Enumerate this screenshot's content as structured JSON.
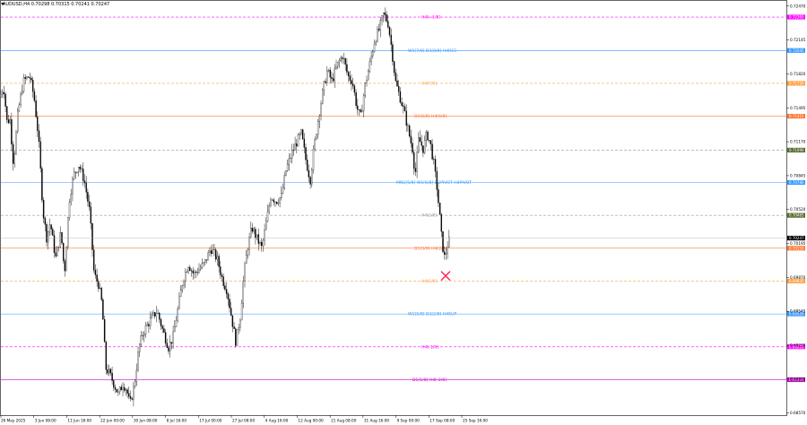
{
  "header": {
    "symbol_line": "AUDUSD,H4  0.70298 0.70315 0.70241 0.70247"
  },
  "chart_data": {
    "type": "candlestick",
    "symbol": "AUDUSD",
    "timeframe": "H4",
    "ylim": [
      0.6855,
      0.7252
    ],
    "last_price": "0.70247",
    "y_ticks": [
      "0.72470",
      "0.72145",
      "0.71820",
      "0.71495",
      "0.71170",
      "0.70845",
      "0.70520",
      "0.70195",
      "0.69870",
      "0.69545",
      "0.69220",
      "0.68895",
      "0.68570"
    ],
    "x_ticks": [
      "26 May 2025",
      "3 Jun 08:00",
      "11 Jun 16:00",
      "22 Jun 00:00",
      "30 Jun 08:00",
      "8 Jul 16:00",
      "17 Jul 00:00",
      "27 Jul 08:00",
      "4 Aug 16:00",
      "12 Aug 00:00",
      "21 Aug 08:00",
      "31 Aug 16:00",
      "9 Sep 00:00",
      "17 Sep 08:00",
      "25 Sep 16:00"
    ],
    "price_path": [
      [
        0,
        0.716
      ],
      [
        4,
        0.717
      ],
      [
        8,
        0.7135
      ],
      [
        11,
        0.714
      ],
      [
        15,
        0.7095
      ],
      [
        20,
        0.7145
      ],
      [
        26,
        0.7175
      ],
      [
        33,
        0.718
      ],
      [
        38,
        0.716
      ],
      [
        43,
        0.712
      ],
      [
        48,
        0.705
      ],
      [
        52,
        0.7025
      ],
      [
        56,
        0.704
      ],
      [
        62,
        0.7005
      ],
      [
        68,
        0.703
      ],
      [
        72,
        0.699
      ],
      [
        77,
        0.706
      ],
      [
        82,
        0.7085
      ],
      [
        88,
        0.7095
      ],
      [
        94,
        0.708
      ],
      [
        100,
        0.705
      ],
      [
        105,
        0.699
      ],
      [
        110,
        0.698
      ],
      [
        114,
        0.696
      ],
      [
        118,
        0.69
      ],
      [
        122,
        0.6895
      ],
      [
        127,
        0.6885
      ],
      [
        132,
        0.6875
      ],
      [
        137,
        0.6885
      ],
      [
        141,
        0.688
      ],
      [
        145,
        0.6865
      ],
      [
        150,
        0.6885
      ],
      [
        155,
        0.692
      ],
      [
        160,
        0.6935
      ],
      [
        167,
        0.6945
      ],
      [
        175,
        0.6955
      ],
      [
        182,
        0.6935
      ],
      [
        188,
        0.692
      ],
      [
        193,
        0.693
      ],
      [
        198,
        0.6955
      ],
      [
        204,
        0.6985
      ],
      [
        210,
        0.7
      ],
      [
        216,
        0.699
      ],
      [
        222,
        0.6995
      ],
      [
        228,
        0.7
      ],
      [
        235,
        0.7015
      ],
      [
        242,
        0.7005
      ],
      [
        248,
        0.6985
      ],
      [
        253,
        0.6975
      ],
      [
        258,
        0.695
      ],
      [
        263,
        0.6925
      ],
      [
        268,
        0.695
      ],
      [
        272,
        0.699
      ],
      [
        276,
        0.7015
      ],
      [
        281,
        0.7035
      ],
      [
        286,
        0.7025
      ],
      [
        292,
        0.7015
      ],
      [
        297,
        0.704
      ],
      [
        302,
        0.7065
      ],
      [
        308,
        0.706
      ],
      [
        314,
        0.7065
      ],
      [
        319,
        0.709
      ],
      [
        325,
        0.7105
      ],
      [
        330,
        0.7115
      ],
      [
        336,
        0.7125
      ],
      [
        341,
        0.71
      ],
      [
        346,
        0.708
      ],
      [
        350,
        0.711
      ],
      [
        355,
        0.714
      ],
      [
        360,
        0.7165
      ],
      [
        365,
        0.7185
      ],
      [
        370,
        0.7175
      ],
      [
        376,
        0.719
      ],
      [
        382,
        0.72
      ],
      [
        388,
        0.718
      ],
      [
        393,
        0.7175
      ],
      [
        398,
        0.715
      ],
      [
        402,
        0.714
      ],
      [
        407,
        0.717
      ],
      [
        412,
        0.719
      ],
      [
        418,
        0.7215
      ],
      [
        423,
        0.7225
      ],
      [
        428,
        0.724
      ],
      [
        433,
        0.723
      ],
      [
        437,
        0.7205
      ],
      [
        441,
        0.7175
      ],
      [
        446,
        0.716
      ],
      [
        451,
        0.7145
      ],
      [
        456,
        0.7125
      ],
      [
        460,
        0.711
      ],
      [
        463,
        0.7085
      ],
      [
        467,
        0.712
      ],
      [
        472,
        0.711
      ],
      [
        476,
        0.7125
      ],
      [
        480,
        0.7115
      ],
      [
        484,
        0.7095
      ],
      [
        487,
        0.7075
      ],
      [
        490,
        0.705
      ],
      [
        493,
        0.702
      ],
      [
        496,
        0.7005
      ],
      [
        499,
        0.7018
      ],
      [
        502,
        0.7025
      ]
    ],
    "levels": [
      {
        "label": "H4[+1/8]",
        "price": 0.72365,
        "color": "#ff00ff",
        "dash": true,
        "tag": "0.72365",
        "label_x": 470
      },
      {
        "label": "W1[7/8]  D1[8/8] H4RES",
        "price": 0.72045,
        "color": "#3399ff",
        "dash": false,
        "tag": "0.72045",
        "label_x": 455
      },
      {
        "label": "H4[7/8]",
        "price": 0.7173,
        "color": "#ffa040",
        "dash": true,
        "tag": "0.71730",
        "label_x": 470
      },
      {
        "label": "D1[6/8]  H4[6/8]",
        "price": 0.71415,
        "color": "#ff7733",
        "dash": false,
        "tag": "0.71415",
        "label_x": 462
      },
      {
        "label": "",
        "price": 0.7109,
        "color": "#999999",
        "dash": true,
        "tag": "0.71090",
        "tag_color": "#556b2f",
        "label_x": 470
      },
      {
        "label": "MN1[5/8]  W1[6/8] D1PIVOT H4PIVOT",
        "price": 0.7078,
        "color": "#3399ff",
        "dash": false,
        "tag": "0.70780",
        "label_x": 442
      },
      {
        "label": "H4[3/8]",
        "price": 0.70465,
        "color": "#999999",
        "dash": true,
        "tag": "0.70465",
        "tag_color": "#556b2f",
        "label_x": 470
      },
      {
        "label": "D1[3/8]  H4[2/8]",
        "price": 0.7015,
        "color": "#ff7733",
        "dash": false,
        "tag": "0.70150",
        "label_x": 462
      },
      {
        "label": "H4[1/8]",
        "price": 0.69835,
        "color": "#ffa040",
        "dash": true,
        "tag": "0.69835",
        "label_x": 470
      },
      {
        "label": "W1[5/8]  D1[2/8] H4SUP",
        "price": 0.6952,
        "color": "#3399ff",
        "dash": false,
        "tag": "0.69520",
        "label_x": 455
      },
      {
        "label": "H4[-1/8]",
        "price": 0.69205,
        "color": "#ff00ff",
        "dash": true,
        "tag": "0.69205",
        "label_x": 470
      },
      {
        "label": "D1[1/8]  H4[-2/8]",
        "price": 0.6889,
        "color": "#cc00cc",
        "dash": false,
        "tag": "0.68890",
        "label_x": 460
      }
    ],
    "marker": {
      "type": "cross",
      "x": 497,
      "price": 0.69885,
      "color": "#ff2255"
    }
  }
}
